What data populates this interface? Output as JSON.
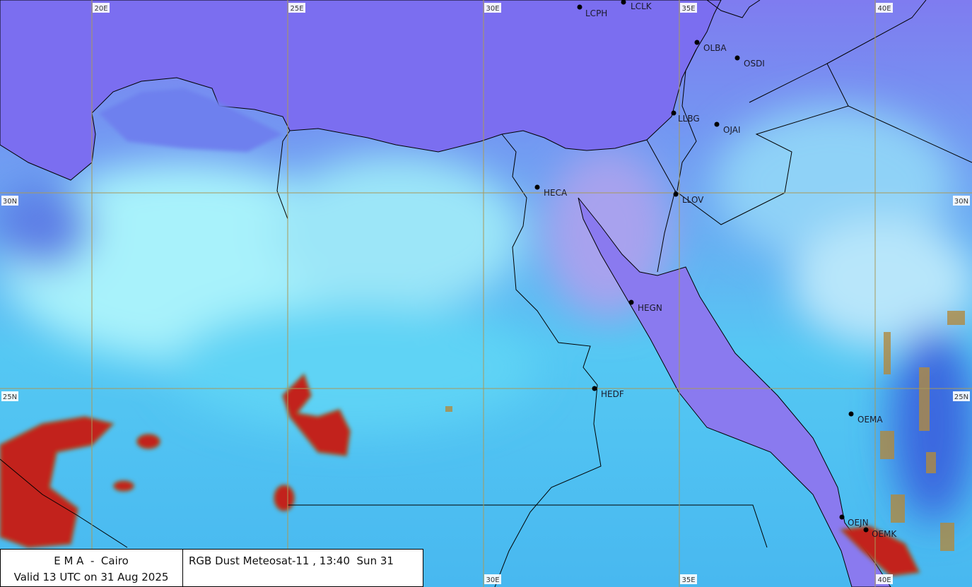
{
  "grid_labels": {
    "top": [
      "20E",
      "25E",
      "30E",
      "35E",
      "40E"
    ],
    "bottom": [
      "30E",
      "35E",
      "40E"
    ],
    "left": [
      "30N",
      "25N"
    ],
    "right": [
      "30N",
      "25N"
    ]
  },
  "stations": [
    {
      "label": "LCPH"
    },
    {
      "label": "LCLK"
    },
    {
      "label": "OLBA"
    },
    {
      "label": "OSDI"
    },
    {
      "label": "LLBG"
    },
    {
      "label": "OJAI"
    },
    {
      "label": "HECA"
    },
    {
      "label": "LLOV"
    },
    {
      "label": "HEGN"
    },
    {
      "label": "HEDF"
    },
    {
      "label": "OEMA"
    },
    {
      "label": "OEJN"
    },
    {
      "label": "OEMK"
    }
  ],
  "footer": {
    "agency": "E M A  -  Cairo",
    "valid": "Valid 13 UTC on 31 Aug 2025",
    "product": "RGB Dust Meteosat-11 , 13:40  Sun 31"
  }
}
